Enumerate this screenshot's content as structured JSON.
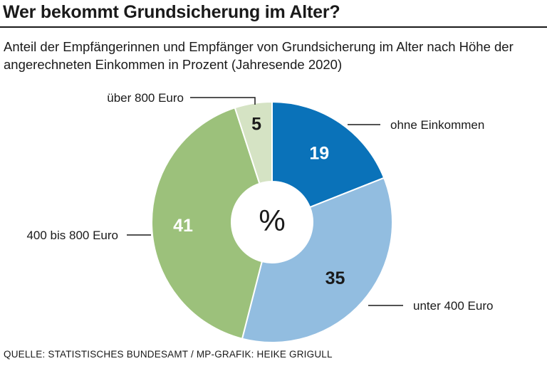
{
  "header": {
    "title": "Wer bekommt Grundsicherung im Alter?",
    "subtitle": "Anteil der Empfängerinnen und Empfänger von Grundsicherung im Alter nach Höhe der angerechneten Einkommen in Prozent (Jahresende 2020)"
  },
  "center_label": "%",
  "source": "QUELLE: STATISTISCHES BUNDESAMT / MP-GRAFIK: HEIKE GRIGULL",
  "chart_data": {
    "type": "pie",
    "donut": true,
    "title": "Wer bekommt Grundsicherung im Alter?",
    "subtitle": "Anteil der Empfängerinnen und Empfänger von Grundsicherung im Alter nach Höhe der angerechneten Einkommen in Prozent (Jahresende 2020)",
    "unit": "%",
    "start": "12 o'clock, clockwise",
    "slices": [
      {
        "label": "ohne Einkommen",
        "value": 19,
        "value_text": "19",
        "color": "#0a72b9",
        "value_color": "#ffffff"
      },
      {
        "label": "unter 400 Euro",
        "value": 35,
        "value_text": "35",
        "color": "#92bde0",
        "value_color": "#1a1a1a"
      },
      {
        "label": "400 bis 800 Euro",
        "value": 41,
        "value_text": "41",
        "color": "#9cc17b",
        "value_color": "#ffffff"
      },
      {
        "label": "über 800 Euro",
        "value": 5,
        "value_text": "5",
        "color": "#d5e3c4",
        "value_color": "#1a1a1a"
      }
    ]
  }
}
